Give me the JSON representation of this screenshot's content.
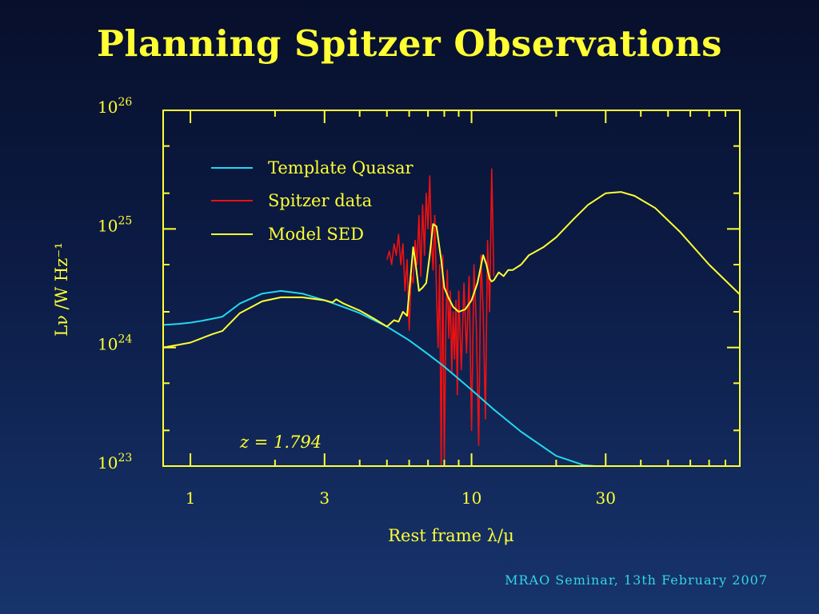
{
  "slide": {
    "title": "Planning Spitzer Observations",
    "footer": "MRAO Seminar, 13th February 2007"
  },
  "colors": {
    "frame": "#ffff33",
    "template_quasar": "#22d8ee",
    "spitzer_data": "#ee1111",
    "model_sed": "#ffff33",
    "footer": "#36d3e8"
  },
  "chart_data": {
    "type": "line",
    "xlabel": "Rest frame λ/μ",
    "ylabel": "Lν /W Hz⁻¹",
    "x_scale": "log",
    "y_scale": "log",
    "xlim": [
      0.8,
      90
    ],
    "ylim": [
      1e+23,
      1e+26
    ],
    "x_ticks": [
      {
        "value": 1,
        "label": "1"
      },
      {
        "value": 3,
        "label": "3"
      },
      {
        "value": 10,
        "label": "10"
      },
      {
        "value": 30,
        "label": "30"
      }
    ],
    "y_ticks": [
      {
        "value": 1e+23,
        "base": "10",
        "exp": "23"
      },
      {
        "value": 1e+24,
        "base": "10",
        "exp": "24"
      },
      {
        "value": 1e+25,
        "base": "10",
        "exp": "25"
      },
      {
        "value": 1e+26,
        "base": "10",
        "exp": "26"
      }
    ],
    "annotation": "z = 1.794",
    "legend": {
      "position": "top-left",
      "entries": [
        "Template Quasar",
        "Spitzer data",
        "Model SED"
      ]
    },
    "series": [
      {
        "name": "Template Quasar",
        "x": [
          0.8,
          0.9,
          1.0,
          1.1,
          1.2,
          1.3,
          1.5,
          1.8,
          2.1,
          2.5,
          3.0,
          3.5,
          4.0,
          5.0,
          6.0,
          7.0,
          8.0,
          10.0,
          12.0,
          15.0,
          20.0,
          25.0,
          27.5
        ],
        "y": [
          1.55e+24,
          1.58e+24,
          1.62e+24,
          1.68e+24,
          1.75e+24,
          1.82e+24,
          2.35e+24,
          2.85e+24,
          3e+24,
          2.85e+24,
          2.5e+24,
          2.2e+24,
          1.95e+24,
          1.5e+24,
          1.15e+24,
          8.8e+23,
          6.9e+23,
          4.4e+23,
          3e+23,
          1.95e+23,
          1.22e+23,
          1.02e+23,
          1e+23
        ]
      },
      {
        "name": "Spitzer data",
        "x": [
          5.0,
          5.1,
          5.2,
          5.3,
          5.4,
          5.5,
          5.6,
          5.7,
          5.8,
          5.9,
          6.0,
          6.1,
          6.2,
          6.3,
          6.4,
          6.5,
          6.6,
          6.7,
          6.8,
          6.9,
          7.0,
          7.1,
          7.2,
          7.3,
          7.4,
          7.5,
          7.6,
          7.7,
          7.8,
          7.9,
          8.0,
          8.1,
          8.2,
          8.3,
          8.4,
          8.5,
          8.6,
          8.7,
          8.8,
          8.9,
          9.0,
          9.2,
          9.4,
          9.6,
          9.8,
          10.0,
          10.2,
          10.4,
          10.6,
          10.8,
          11.0,
          11.2,
          11.4,
          11.6,
          11.8,
          12.0
        ],
        "y": [
          5.5e+24,
          6.5e+24,
          5e+24,
          7.5e+24,
          6e+24,
          9e+24,
          5e+24,
          7.5e+24,
          3e+24,
          5.5e+24,
          1.4e+24,
          4e+24,
          3.5e+24,
          8e+24,
          5e+24,
          1.3e+25,
          4e+24,
          1.6e+25,
          6e+24,
          2e+25,
          1e+25,
          2.8e+25,
          8e+24,
          4.5e+24,
          1.3e+25,
          3e+24,
          1e+24,
          5e+24,
          1e+23,
          6e+24,
          1e+23,
          1.5e+24,
          4.5e+24,
          1.2e+24,
          3e+24,
          6e+23,
          2e+24,
          8e+23,
          2.5e+24,
          4e+23,
          3e+24,
          6.5e+23,
          3.5e+24,
          9e+23,
          4e+24,
          2e+23,
          5e+24,
          1.5e+24,
          1.5e+23,
          6e+24,
          2e+24,
          2.5e+23,
          8e+24,
          2e+24,
          3.2e+25,
          4e+24
        ]
      },
      {
        "name": "Model SED",
        "x": [
          0.8,
          0.9,
          1.0,
          1.1,
          1.2,
          1.3,
          1.5,
          1.8,
          2.1,
          2.5,
          3.0,
          3.2,
          3.3,
          3.5,
          4.0,
          4.5,
          5.0,
          5.3,
          5.5,
          5.7,
          5.9,
          6.1,
          6.2,
          6.3,
          6.5,
          6.7,
          6.9,
          7.1,
          7.3,
          7.5,
          7.8,
          8.0,
          8.3,
          8.6,
          9.0,
          9.5,
          10.0,
          10.5,
          11.0,
          11.3,
          11.6,
          11.8,
          12.0,
          12.5,
          13.0,
          13.5,
          14.0,
          15.0,
          16.0,
          17.0,
          18.0,
          20.0,
          23.0,
          26.0,
          30.0,
          34.0,
          38.0,
          45.0,
          55.0,
          70.0,
          90.0
        ],
        "y": [
          1e+24,
          1.05e+24,
          1.1e+24,
          1.2e+24,
          1.3e+24,
          1.38e+24,
          1.95e+24,
          2.45e+24,
          2.65e+24,
          2.65e+24,
          2.5e+24,
          2.4e+24,
          2.55e+24,
          2.35e+24,
          2.05e+24,
          1.75e+24,
          1.5e+24,
          1.7e+24,
          1.65e+24,
          2e+24,
          1.85e+24,
          4.5e+24,
          7e+24,
          5.5e+24,
          3e+24,
          3.2e+24,
          3.5e+24,
          6e+24,
          1.1e+25,
          1.05e+25,
          5.5e+24,
          3.2e+24,
          2.6e+24,
          2.2e+24,
          2e+24,
          2.1e+24,
          2.5e+24,
          3.5e+24,
          6e+24,
          5e+24,
          3.8e+24,
          3.6e+24,
          3.7e+24,
          4.3e+24,
          4e+24,
          4.5e+24,
          4.5e+24,
          5e+24,
          6e+24,
          6.5e+24,
          7e+24,
          8.5e+24,
          1.2e+25,
          1.6e+25,
          2e+25,
          2.05e+25,
          1.9e+25,
          1.5e+25,
          9.5e+24,
          5e+24,
          2.8e+24
        ]
      }
    ]
  }
}
